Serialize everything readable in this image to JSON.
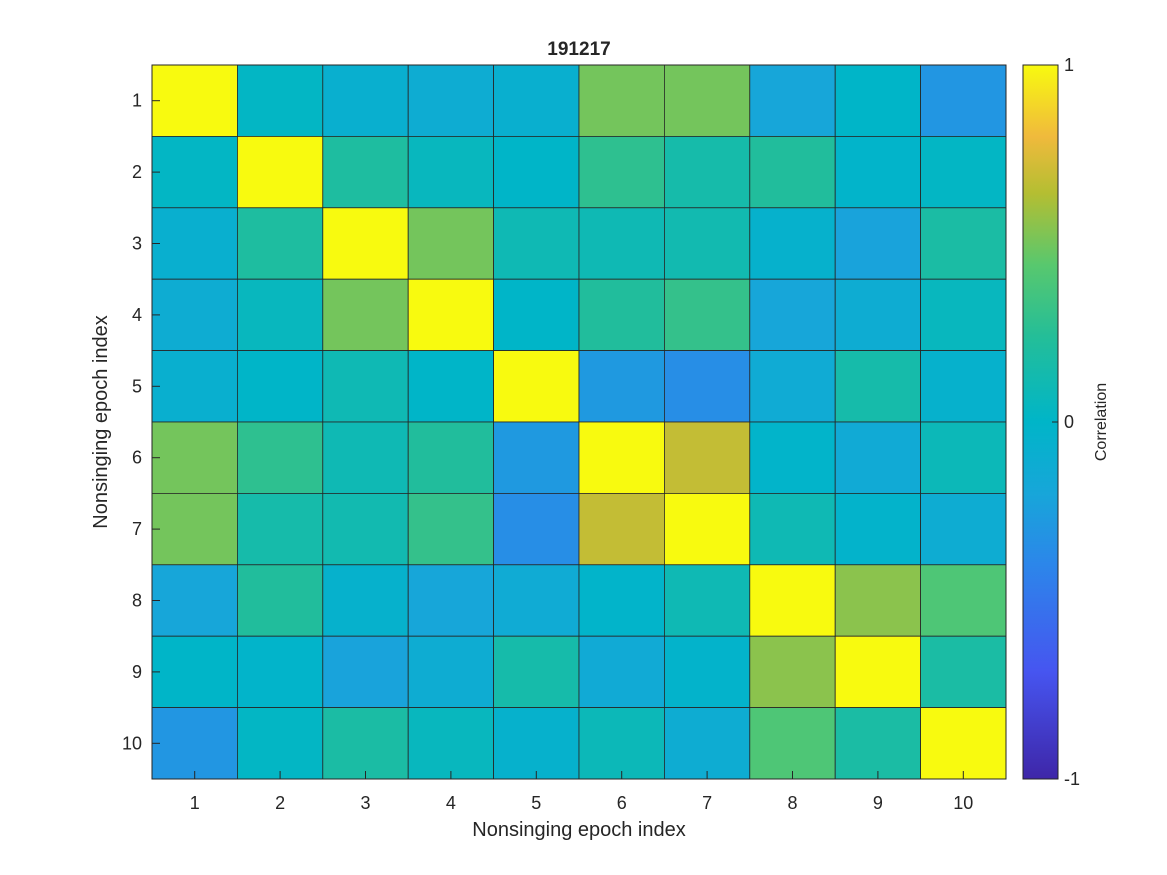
{
  "chart_data": {
    "type": "heatmap",
    "title": "191217",
    "xlabel": "Nonsinging epoch index",
    "ylabel": "Nonsinging epoch index",
    "x_categories": [
      "1",
      "2",
      "3",
      "4",
      "5",
      "6",
      "7",
      "8",
      "9",
      "10"
    ],
    "y_categories": [
      "1",
      "2",
      "3",
      "4",
      "5",
      "6",
      "7",
      "8",
      "9",
      "10"
    ],
    "values": [
      [
        1.0,
        0.02,
        -0.08,
        -0.12,
        -0.08,
        0.5,
        0.5,
        -0.2,
        0.0,
        -0.3
      ],
      [
        0.02,
        1.0,
        0.2,
        0.05,
        0.0,
        0.28,
        0.15,
        0.22,
        -0.02,
        0.02
      ],
      [
        -0.08,
        0.2,
        1.0,
        0.5,
        0.1,
        0.1,
        0.12,
        -0.05,
        -0.22,
        0.18
      ],
      [
        -0.12,
        0.05,
        0.5,
        1.0,
        0.0,
        0.22,
        0.3,
        -0.2,
        -0.12,
        0.05
      ],
      [
        -0.08,
        0.0,
        0.1,
        0.0,
        1.0,
        -0.28,
        -0.35,
        -0.14,
        0.15,
        -0.05
      ],
      [
        0.5,
        0.28,
        0.1,
        0.22,
        -0.28,
        1.0,
        0.68,
        -0.02,
        -0.15,
        0.08
      ],
      [
        0.5,
        0.15,
        0.12,
        0.3,
        -0.35,
        0.68,
        1.0,
        0.1,
        -0.03,
        -0.12
      ],
      [
        -0.2,
        0.22,
        -0.05,
        -0.2,
        -0.14,
        -0.02,
        0.1,
        1.0,
        0.55,
        0.4
      ],
      [
        0.0,
        -0.02,
        -0.22,
        -0.12,
        0.15,
        -0.15,
        -0.03,
        0.55,
        1.0,
        0.18
      ],
      [
        -0.3,
        0.02,
        0.18,
        0.05,
        -0.05,
        0.08,
        -0.12,
        0.4,
        0.18,
        1.0
      ]
    ],
    "clim": [
      -1,
      1
    ],
    "colormap": "parula",
    "colorbar": {
      "label": "Correlation",
      "ticks": [
        -1,
        0,
        1
      ],
      "tick_labels": [
        "-1",
        "0",
        "1"
      ],
      "location": "right"
    }
  }
}
